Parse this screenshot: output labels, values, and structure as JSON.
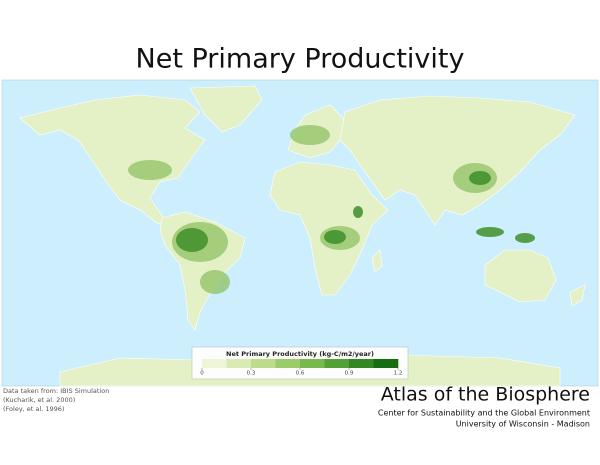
{
  "title": "Net Primary Productivity",
  "legend": {
    "title": "Net Primary Productivity (kg-C/m2/year)",
    "range": [
      0,
      1.2
    ],
    "ticks": [
      0,
      0.3,
      0.6,
      0.9,
      1.2
    ],
    "colors": [
      "#eef5d8",
      "#d9ebb4",
      "#bcdc8c",
      "#9ccb6a",
      "#79b84c",
      "#55a035",
      "#348723",
      "#176d12"
    ]
  },
  "credits": [
    "Data taken from: IBIS Simulation",
    "(Kucharik, et al. 2000)",
    "(Foley, et al. 1996)"
  ],
  "footer": {
    "title": "Atlas of the Biosphere",
    "lines": [
      "Center for Sustainability and the Global Environment",
      "University of Wisconsin - Madison"
    ]
  }
}
